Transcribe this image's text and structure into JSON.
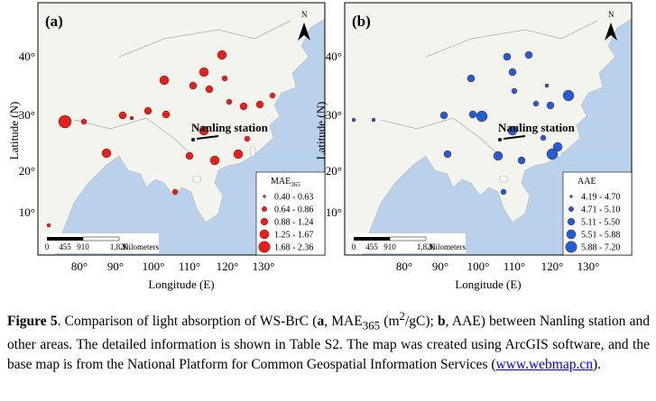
{
  "panels": [
    {
      "label": "(a)",
      "legend_title": "MAE",
      "legend_title_sub": "365",
      "classes": [
        "0.40 - 0.63",
        "0.64 - 0.86",
        "0.88 - 1.24",
        "1.25 - 1.67",
        "1.68 - 2.36"
      ],
      "station": "Nanling station"
    },
    {
      "label": "(b)",
      "legend_title": "AAE",
      "classes": [
        "4.19 - 4.70",
        "4.71 - 5.10",
        "5.11 - 5.50",
        "5.51 - 5.88",
        "5.88 - 7.20"
      ],
      "station": "Nanling station"
    }
  ],
  "axes": {
    "y_label": "Latitude (N)",
    "x_label": "Longitude (E)",
    "yticks": [
      "10°",
      "20°",
      "30°",
      "40°"
    ],
    "xticks": [
      "80°",
      "90°",
      "100°",
      "110°",
      "120°",
      "130°"
    ]
  },
  "scale_bar": {
    "ticks": [
      "0",
      "455",
      "910",
      "1,820"
    ],
    "unit": "Kilometers"
  },
  "north": "N",
  "caption": {
    "label": "Figure 5",
    "t1": ". Comparison of light absorption of WS-BrC (",
    "a": "a",
    "t2": ", MAE",
    "sub": "365",
    "t3": " (m",
    "sup": "2",
    "t4": "/gC); ",
    "b": "b",
    "t5": ", AAE) between Nanling station and other areas. The detailed information is shown in Table S2. The map was created using ArcGIS software, and the base map is from the National Platform for Common Geospatial Information Services (",
    "link": "www.webmap.cn",
    "t6": ")."
  }
}
